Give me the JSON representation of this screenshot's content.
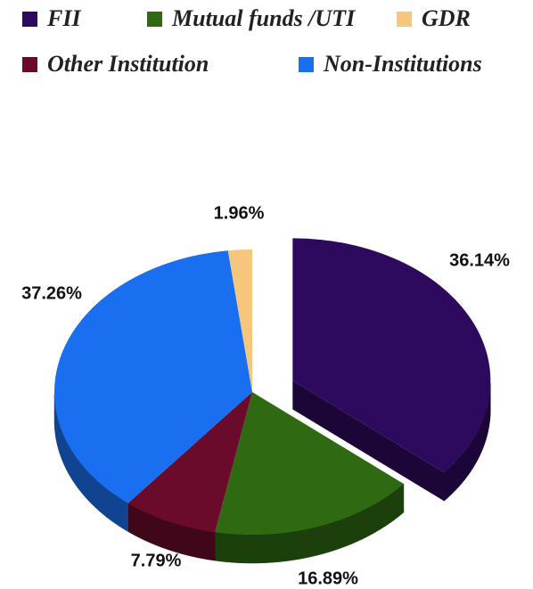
{
  "chart_data": {
    "type": "pie",
    "categories": [
      "FII",
      "Mutual funds /UTI",
      "Other Institution",
      "Non-Institutions",
      "GDR"
    ],
    "values": [
      36.14,
      16.89,
      7.79,
      37.26,
      1.96
    ],
    "value_labels": [
      "36.14%",
      "16.89%",
      "7.79%",
      "37.26%",
      "1.96%"
    ],
    "colors": [
      "#2e0a5e",
      "#2f6a12",
      "#6a0b2c",
      "#1a6ff0",
      "#f6c67c"
    ],
    "exploded": [
      true,
      false,
      false,
      false,
      false
    ],
    "legend": "top"
  }
}
